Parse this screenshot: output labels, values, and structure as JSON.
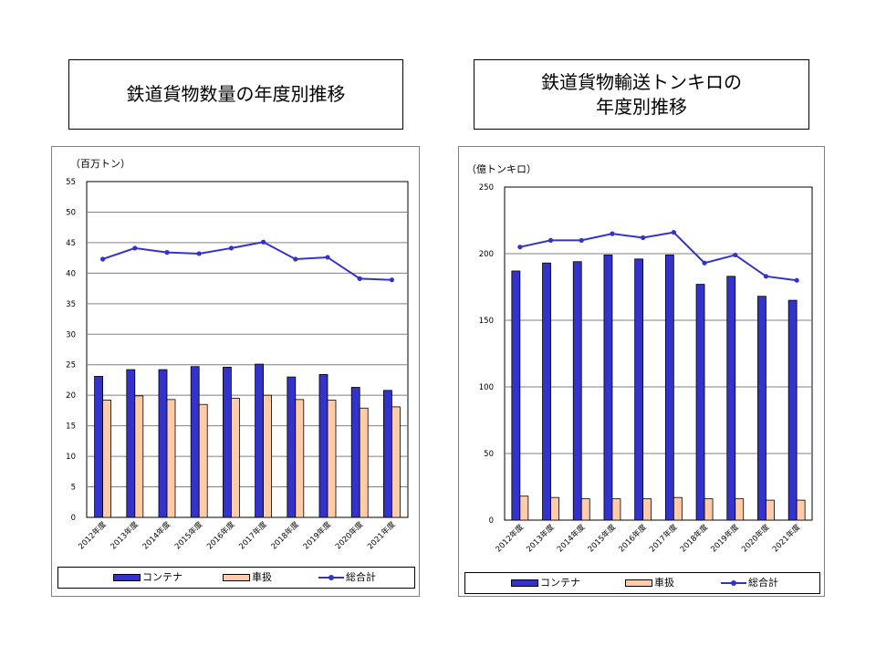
{
  "colors": {
    "container": "#3333cc",
    "car": "#ffccaa",
    "total": "#3333cc",
    "grid": "#808080"
  },
  "title_left": "鉄道貨物数量の年度別推移",
  "title_right": "鉄道貨物輸送トンキロの\n年度別推移",
  "legend": {
    "container": "コンテナ",
    "car": "車扱",
    "total": "総合計"
  },
  "chart_data": [
    {
      "type": "bar",
      "unit_label": "（百万トン）",
      "categories": [
        "2012年度",
        "2013年度",
        "2014年度",
        "2015年度",
        "2016年度",
        "2017年度",
        "2018年度",
        "2019年度",
        "2020年度",
        "2021年度"
      ],
      "ylim": [
        0,
        55
      ],
      "yticks": [
        0,
        5,
        10,
        15,
        20,
        25,
        30,
        35,
        40,
        45,
        50,
        55
      ],
      "grid": true,
      "legend_position": "bottom",
      "series": [
        {
          "name": "コンテナ",
          "type": "bar",
          "values": [
            23.1,
            24.2,
            24.2,
            24.7,
            24.6,
            25.1,
            23.0,
            23.4,
            21.3,
            20.8
          ]
        },
        {
          "name": "車扱",
          "type": "bar",
          "values": [
            19.2,
            19.9,
            19.3,
            18.5,
            19.5,
            20.0,
            19.3,
            19.2,
            17.9,
            18.1
          ]
        },
        {
          "name": "総合計",
          "type": "line",
          "values": [
            42.3,
            44.1,
            43.4,
            43.2,
            44.1,
            45.1,
            42.3,
            42.6,
            39.1,
            38.9
          ]
        }
      ]
    },
    {
      "type": "bar",
      "unit_label": "（億トンキロ）",
      "categories": [
        "2012年度",
        "2013年度",
        "2014年度",
        "2015年度",
        "2016年度",
        "2017年度",
        "2018年度",
        "2019年度",
        "2020年度",
        "2021年度"
      ],
      "ylim": [
        0,
        250
      ],
      "yticks": [
        0,
        50,
        100,
        150,
        200,
        250
      ],
      "grid": true,
      "legend_position": "bottom",
      "series": [
        {
          "name": "コンテナ",
          "type": "bar",
          "values": [
            187,
            193,
            194,
            199,
            196,
            199,
            177,
            183,
            168,
            165
          ]
        },
        {
          "name": "車扱",
          "type": "bar",
          "values": [
            18,
            17,
            16,
            16,
            16,
            17,
            16,
            16,
            15,
            15
          ]
        },
        {
          "name": "総合計",
          "type": "line",
          "values": [
            205,
            210,
            210,
            215,
            212,
            216,
            193,
            199,
            183,
            180
          ]
        }
      ]
    }
  ]
}
